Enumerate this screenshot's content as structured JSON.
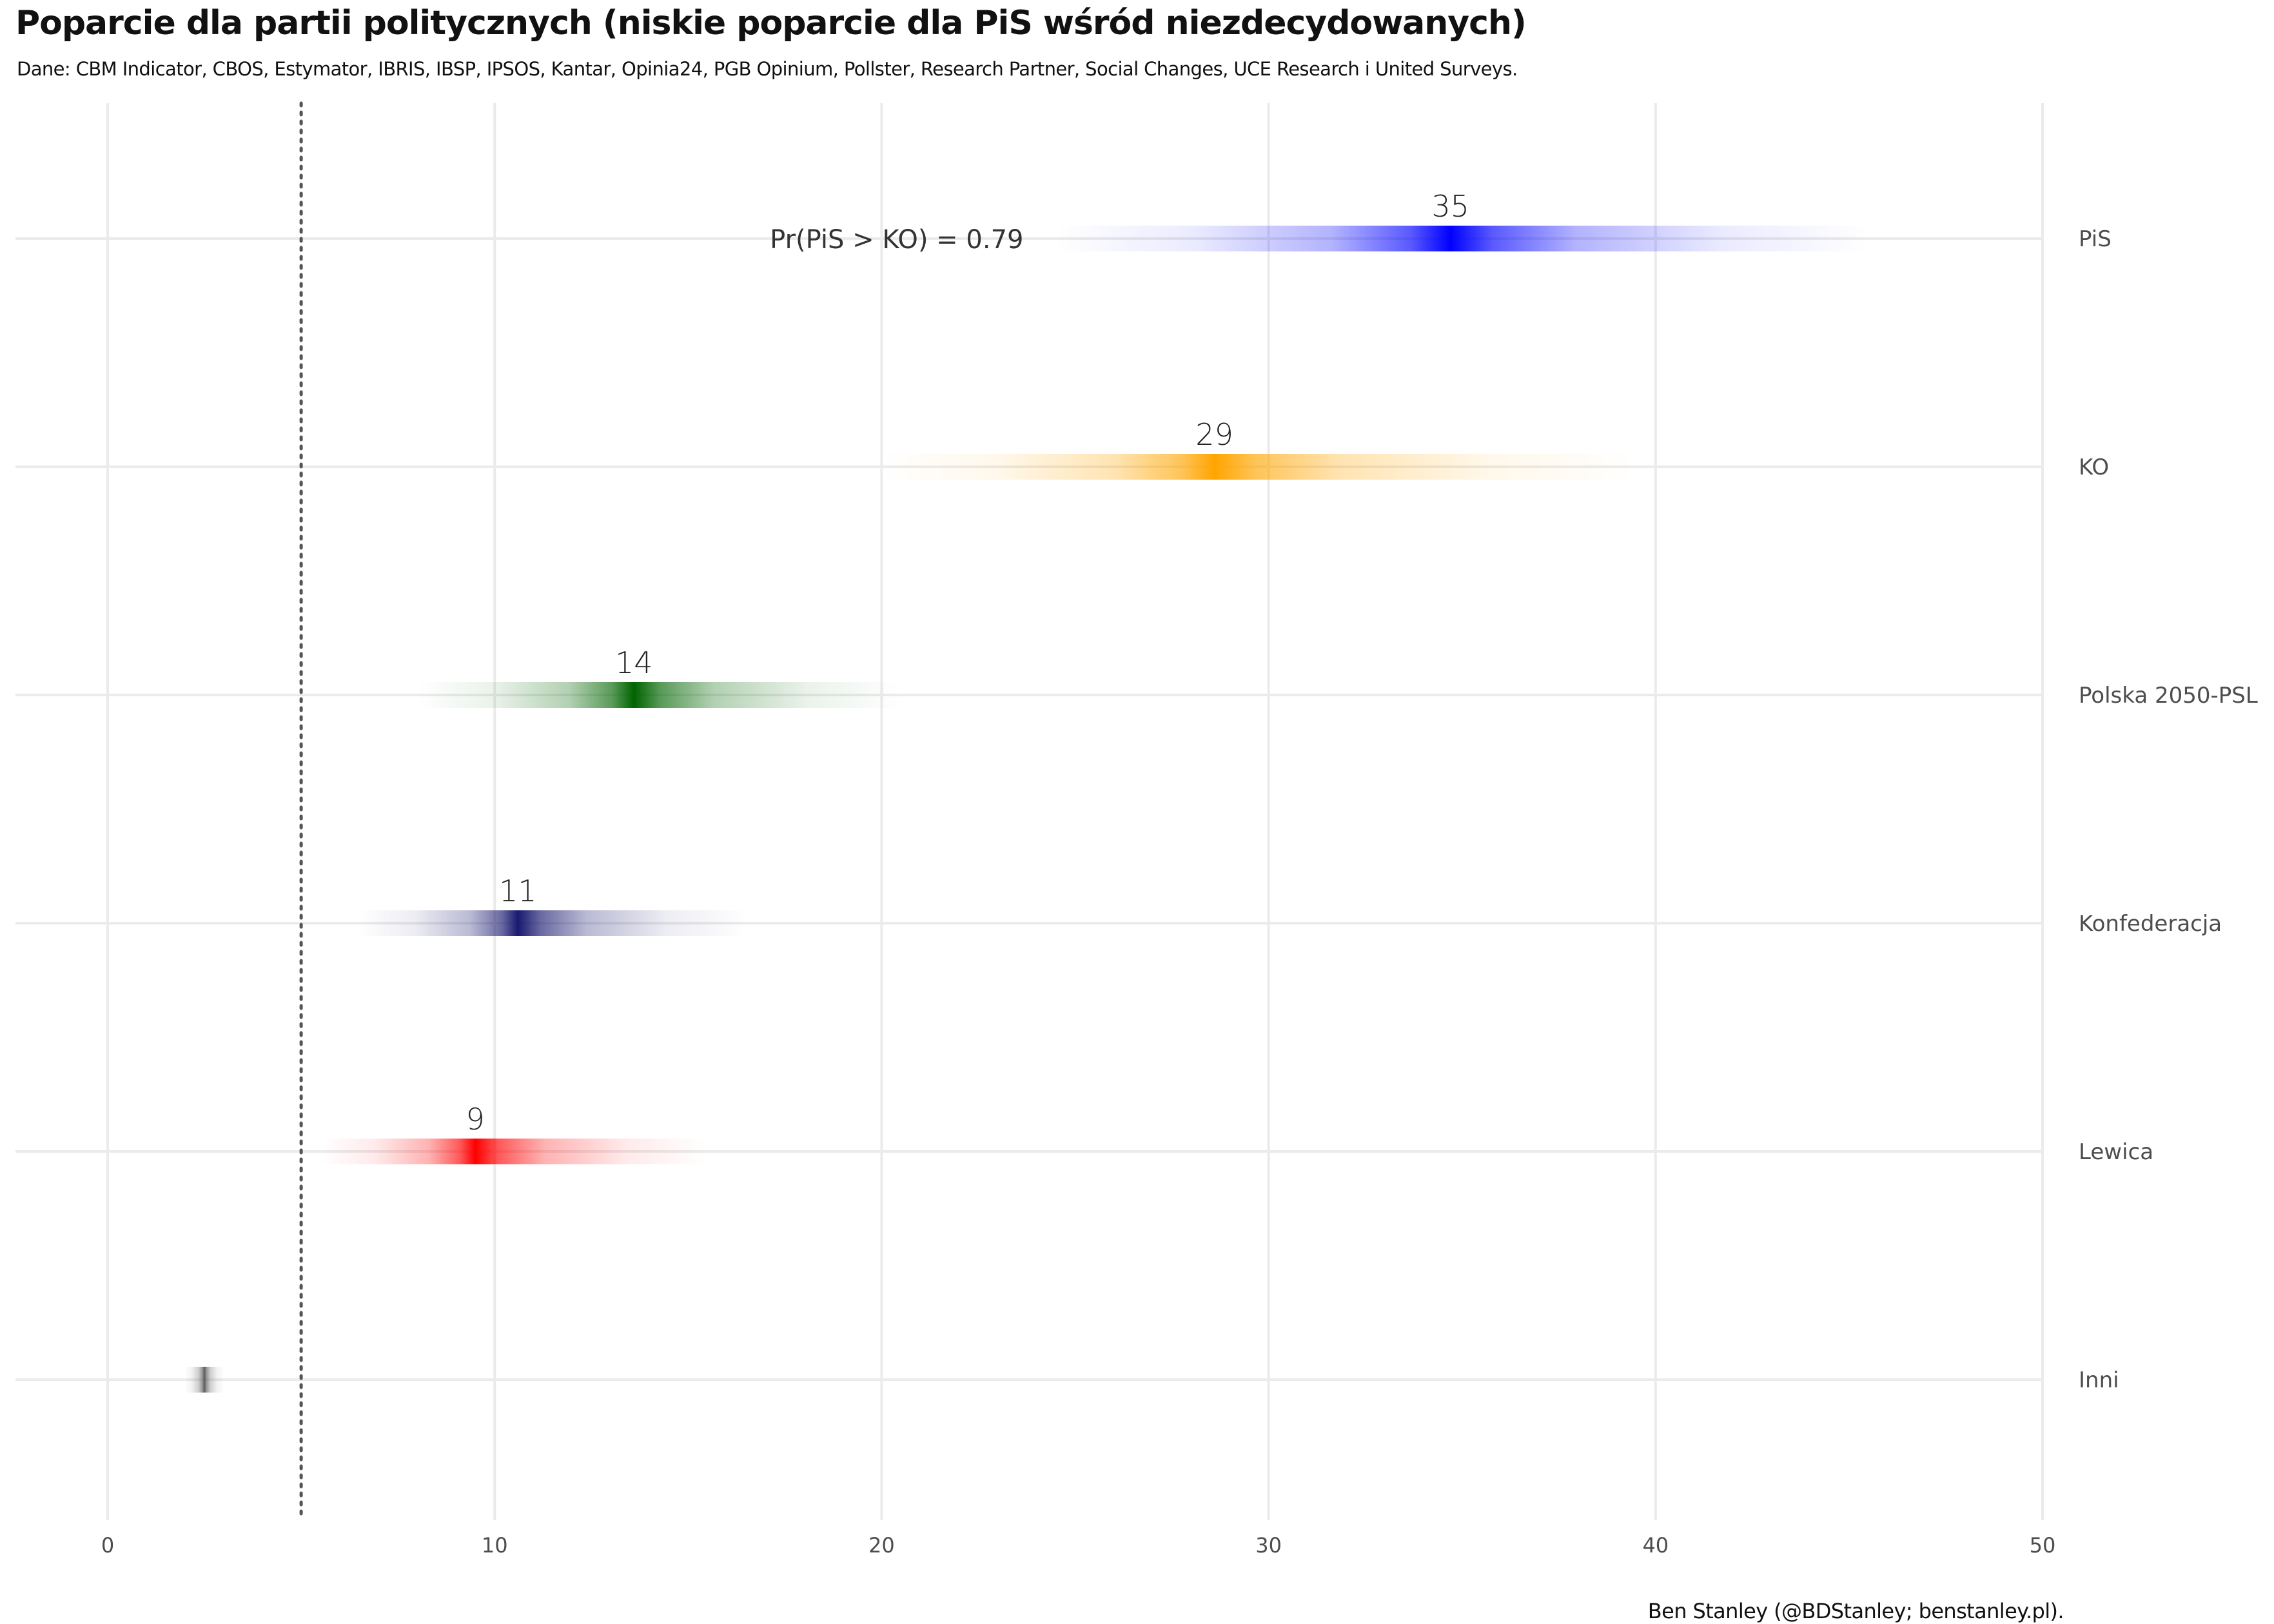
{
  "title": "Poparcie dla partii politycznych (niskie poparcie dla PiS wśród niezdecydowanych)",
  "subtitle": "Dane: CBM Indicator, CBOS, Estymator, IBRIS, IBSP, IPSOS, Kantar, Opinia24, PGB Opinium, Pollster, Research Partner, Social Changes, UCE Research i United Surveys.",
  "caption": "Ben Stanley (@BDStanley; benstanley.pl).",
  "chart_data": {
    "type": "interval",
    "xlim": [
      0,
      50
    ],
    "x_ticks": [
      0,
      10,
      20,
      30,
      40,
      50
    ],
    "x_tick_labels": [
      "0",
      "10",
      "20",
      "30",
      "40",
      "50"
    ],
    "threshold_line": 5,
    "grid": true,
    "annotation": {
      "text": "Pr(PiS > KO)  =  0.79"
    },
    "series": [
      {
        "name": "PiS",
        "label": "35",
        "median": 34.7,
        "low": 24.5,
        "high": 45.5,
        "color": "#0000ff"
      },
      {
        "name": "KO",
        "label": "29",
        "median": 28.6,
        "low": 20.0,
        "high": 39.5,
        "color": "#ffa500"
      },
      {
        "name": "Polska 2050-PSL",
        "label": "14",
        "median": 13.6,
        "low": 8.0,
        "high": 20.5,
        "color": "#006400"
      },
      {
        "name": "Konfederacja",
        "label": "11",
        "median": 10.6,
        "low": 6.5,
        "high": 16.5,
        "color": "#191970"
      },
      {
        "name": "Lewica",
        "label": "9",
        "median": 9.5,
        "low": 5.5,
        "high": 15.5,
        "color": "#ff0000"
      },
      {
        "name": "Inni",
        "label": "",
        "median": 2.5,
        "low": 2.0,
        "high": 3.0,
        "color": "#595959"
      }
    ]
  }
}
